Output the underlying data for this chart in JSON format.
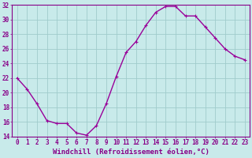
{
  "x": [
    0,
    1,
    2,
    3,
    4,
    5,
    6,
    7,
    8,
    9,
    10,
    11,
    12,
    13,
    14,
    15,
    16,
    17,
    18,
    19,
    20,
    21,
    22,
    23
  ],
  "y": [
    22,
    20.5,
    18.5,
    16.2,
    15.8,
    15.8,
    14.5,
    14.2,
    15.5,
    18.5,
    22.2,
    25.5,
    27.0,
    29.2,
    31.0,
    31.8,
    31.8,
    30.5,
    30.5,
    29.0,
    27.5,
    26.0,
    25.0,
    24.5
  ],
  "line_color": "#990099",
  "marker": "+",
  "bg_color": "#c8eaea",
  "grid_color": "#a0cccc",
  "xlabel": "Windchill (Refroidissement éolien,°C)",
  "xlabel_color": "#880088",
  "tick_color": "#880088",
  "ylim": [
    14,
    32
  ],
  "xlim": [
    -0.5,
    23.5
  ],
  "yticks": [
    14,
    16,
    18,
    20,
    22,
    24,
    26,
    28,
    30,
    32
  ],
  "xticks": [
    0,
    1,
    2,
    3,
    4,
    5,
    6,
    7,
    8,
    9,
    10,
    11,
    12,
    13,
    14,
    15,
    16,
    17,
    18,
    19,
    20,
    21,
    22,
    23
  ],
  "marker_size": 3,
  "line_width": 1.0,
  "tick_fontsize": 5.5,
  "xlabel_fontsize": 6.5
}
